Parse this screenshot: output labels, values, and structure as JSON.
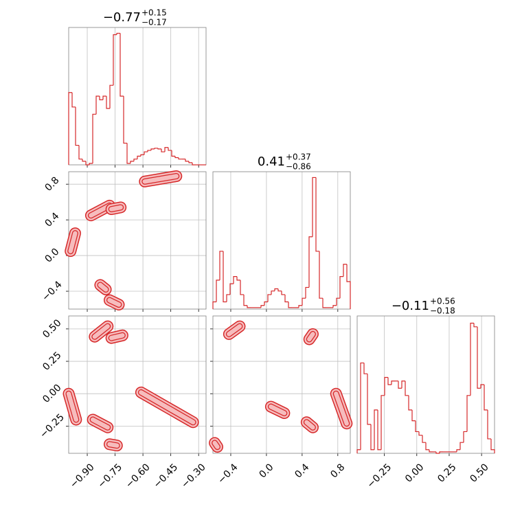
{
  "chart_data": [
    {
      "type": "histogram",
      "title": {
        "value": "−0.77",
        "plus": "+0.15",
        "minus": "−0.17"
      },
      "xlim": [
        -1.0,
        -0.26
      ],
      "xticks": [
        -0.9,
        -0.75,
        -0.6,
        -0.45,
        -0.3
      ],
      "ylim": [
        0,
        190
      ],
      "color": "#d62728",
      "grid": true,
      "bins": [
        -1.0,
        -0.9815,
        -0.963,
        -0.9445,
        -0.926,
        -0.9075,
        -0.889,
        -0.8705,
        -0.852,
        -0.8335,
        -0.815,
        -0.7965,
        -0.778,
        -0.7595,
        -0.741,
        -0.7225,
        -0.704,
        -0.6855,
        -0.667,
        -0.6485,
        -0.63,
        -0.6115,
        -0.593,
        -0.5745,
        -0.556,
        -0.5375,
        -0.519,
        -0.5005,
        -0.482,
        -0.4635,
        -0.445,
        -0.4265,
        -0.408,
        -0.3895,
        -0.371,
        -0.3525,
        -0.334,
        -0.3155,
        -0.297,
        -0.2785,
        -0.26
      ],
      "counts": [
        100,
        80,
        27,
        8,
        5,
        0,
        2,
        70,
        95,
        90,
        95,
        78,
        110,
        180,
        182,
        95,
        30,
        2,
        5,
        8,
        12,
        14,
        18,
        20,
        22,
        23,
        22,
        18,
        24,
        20,
        12,
        10,
        8,
        8,
        5,
        3,
        0,
        0,
        0,
        0
      ]
    },
    {
      "type": "contour",
      "xlim": [
        -1.0,
        -0.26
      ],
      "xticks": [
        -0.9,
        -0.75,
        -0.6,
        -0.45,
        -0.3
      ],
      "ylim": [
        -0.6,
        0.94
      ],
      "yticks": [
        {
          "value": -0.4,
          "label": "−0.4"
        },
        {
          "value": 0.0,
          "label": "0.0"
        },
        {
          "value": 0.4,
          "label": "0.4"
        },
        {
          "value": 0.8,
          "label": "0.8"
        }
      ],
      "color": "#d62728",
      "fill": "#f6bcbd",
      "grid": true,
      "blobs": [
        {
          "x": [
            -0.99,
            -0.965
          ],
          "y": [
            0.05,
            0.25
          ]
        },
        {
          "x": [
            -0.88,
            -0.78
          ],
          "y": [
            0.45,
            0.56
          ]
        },
        {
          "x": [
            -0.77,
            -0.72
          ],
          "y": [
            0.52,
            0.54
          ]
        },
        {
          "x": [
            -0.59,
            -0.42
          ],
          "y": [
            0.83,
            0.89
          ]
        },
        {
          "x": [
            -0.83,
            -0.8
          ],
          "y": [
            -0.33,
            -0.38
          ]
        },
        {
          "x": [
            -0.78,
            -0.73
          ],
          "y": [
            -0.5,
            -0.55
          ]
        }
      ]
    },
    {
      "type": "histogram",
      "title": {
        "value": "0.41",
        "plus": "+0.37",
        "minus": "−0.86"
      },
      "xlim": [
        -0.6,
        0.94
      ],
      "xticks": [
        -0.4,
        0.0,
        0.4,
        0.8
      ],
      "ylim": [
        0,
        190
      ],
      "color": "#d62728",
      "grid": true,
      "bins": [
        -0.6,
        -0.5615,
        -0.523,
        -0.4845,
        -0.446,
        -0.4075,
        -0.369,
        -0.3305,
        -0.292,
        -0.2535,
        -0.215,
        -0.1765,
        -0.138,
        -0.0995,
        -0.061,
        -0.0225,
        0.016,
        0.0545,
        0.093,
        0.1315,
        0.17,
        0.2085,
        0.247,
        0.2855,
        0.324,
        0.3625,
        0.401,
        0.4395,
        0.478,
        0.5165,
        0.555,
        0.5935,
        0.632,
        0.6705,
        0.709,
        0.7475,
        0.786,
        0.8245,
        0.863,
        0.9015,
        0.94
      ],
      "counts": [
        10,
        40,
        80,
        10,
        20,
        35,
        45,
        40,
        20,
        5,
        2,
        2,
        2,
        2,
        5,
        10,
        20,
        25,
        28,
        25,
        20,
        10,
        2,
        2,
        2,
        5,
        15,
        30,
        100,
        182,
        80,
        15,
        2,
        2,
        2,
        5,
        15,
        45,
        62,
        38
      ]
    },
    {
      "type": "contour",
      "xlim": [
        -1.0,
        -0.26
      ],
      "xticks": [
        {
          "value": -0.9,
          "label": "−0.90"
        },
        {
          "value": -0.75,
          "label": "−0.75"
        },
        {
          "value": -0.6,
          "label": "−0.60"
        },
        {
          "value": -0.45,
          "label": "−0.45"
        },
        {
          "value": -0.3,
          "label": "−0.30"
        }
      ],
      "ylim": [
        -0.46,
        0.6
      ],
      "yticks": [
        {
          "value": -0.25,
          "label": "−0.25"
        },
        {
          "value": 0.0,
          "label": "0.00"
        },
        {
          "value": 0.25,
          "label": "0.25"
        },
        {
          "value": 0.5,
          "label": "0.50"
        }
      ],
      "color": "#d62728",
      "fill": "#f6bcbd",
      "grid": true,
      "blobs": [
        {
          "x": [
            -0.86,
            -0.79
          ],
          "y": [
            0.44,
            0.52
          ]
        },
        {
          "x": [
            -0.77,
            -0.71
          ],
          "y": [
            0.43,
            0.45
          ]
        },
        {
          "x": [
            -1.0,
            -0.96
          ],
          "y": [
            0.0,
            -0.2
          ]
        },
        {
          "x": [
            -0.87,
            -0.79
          ],
          "y": [
            -0.2,
            -0.26
          ]
        },
        {
          "x": [
            -0.78,
            -0.74
          ],
          "y": [
            -0.39,
            -0.4
          ]
        },
        {
          "x": [
            -0.61,
            -0.33
          ],
          "y": [
            0.01,
            -0.22
          ]
        }
      ]
    },
    {
      "type": "contour",
      "xlim": [
        -0.6,
        0.94
      ],
      "xticks": [
        {
          "value": -0.4,
          "label": "−0.4"
        },
        {
          "value": 0.0,
          "label": "0.0"
        },
        {
          "value": 0.4,
          "label": "0.4"
        },
        {
          "value": 0.8,
          "label": "0.8"
        }
      ],
      "ylim": [
        -0.46,
        0.6
      ],
      "yticks": [
        -0.25,
        0.0,
        0.25,
        0.5
      ],
      "color": "#d62728",
      "fill": "#f6bcbd",
      "grid": true,
      "blobs": [
        {
          "x": [
            -0.42,
            -0.3
          ],
          "y": [
            0.46,
            0.52
          ]
        },
        {
          "x": [
            0.48,
            0.52
          ],
          "y": [
            0.42,
            0.46
          ]
        },
        {
          "x": [
            -0.58,
            -0.55
          ],
          "y": [
            -0.38,
            -0.41
          ]
        },
        {
          "x": [
            0.05,
            0.2
          ],
          "y": [
            -0.1,
            -0.15
          ]
        },
        {
          "x": [
            0.45,
            0.52
          ],
          "y": [
            -0.22,
            -0.26
          ]
        },
        {
          "x": [
            0.78,
            0.9
          ],
          "y": [
            0.0,
            -0.23
          ]
        }
      ]
    },
    {
      "type": "histogram",
      "title": {
        "value": "−0.11",
        "plus": "+0.56",
        "minus": "−0.18"
      },
      "xlim": [
        -0.46,
        0.6
      ],
      "xticks": [
        {
          "value": -0.25,
          "label": "−0.25"
        },
        {
          "value": 0.0,
          "label": "0.00"
        },
        {
          "value": 0.25,
          "label": "0.25"
        },
        {
          "value": 0.5,
          "label": "0.50"
        }
      ],
      "ylim": [
        0,
        190
      ],
      "color": "#d62728",
      "grid": true,
      "bins": [
        -0.46,
        -0.4335,
        -0.407,
        -0.3805,
        -0.354,
        -0.3275,
        -0.301,
        -0.2745,
        -0.248,
        -0.2215,
        -0.195,
        -0.1685,
        -0.142,
        -0.1155,
        -0.089,
        -0.0625,
        -0.036,
        -0.0095,
        0.017,
        0.0435,
        0.07,
        0.0965,
        0.123,
        0.1495,
        0.176,
        0.2025,
        0.229,
        0.2555,
        0.282,
        0.3085,
        0.335,
        0.3615,
        0.388,
        0.4145,
        0.441,
        0.4675,
        0.494,
        0.5205,
        0.547,
        0.5735,
        0.6
      ],
      "counts": [
        5,
        125,
        110,
        40,
        5,
        60,
        5,
        80,
        105,
        95,
        100,
        100,
        90,
        100,
        80,
        60,
        45,
        30,
        25,
        15,
        5,
        2,
        2,
        0,
        2,
        2,
        2,
        2,
        2,
        5,
        15,
        30,
        80,
        180,
        175,
        90,
        95,
        60,
        20,
        5
      ]
    }
  ]
}
